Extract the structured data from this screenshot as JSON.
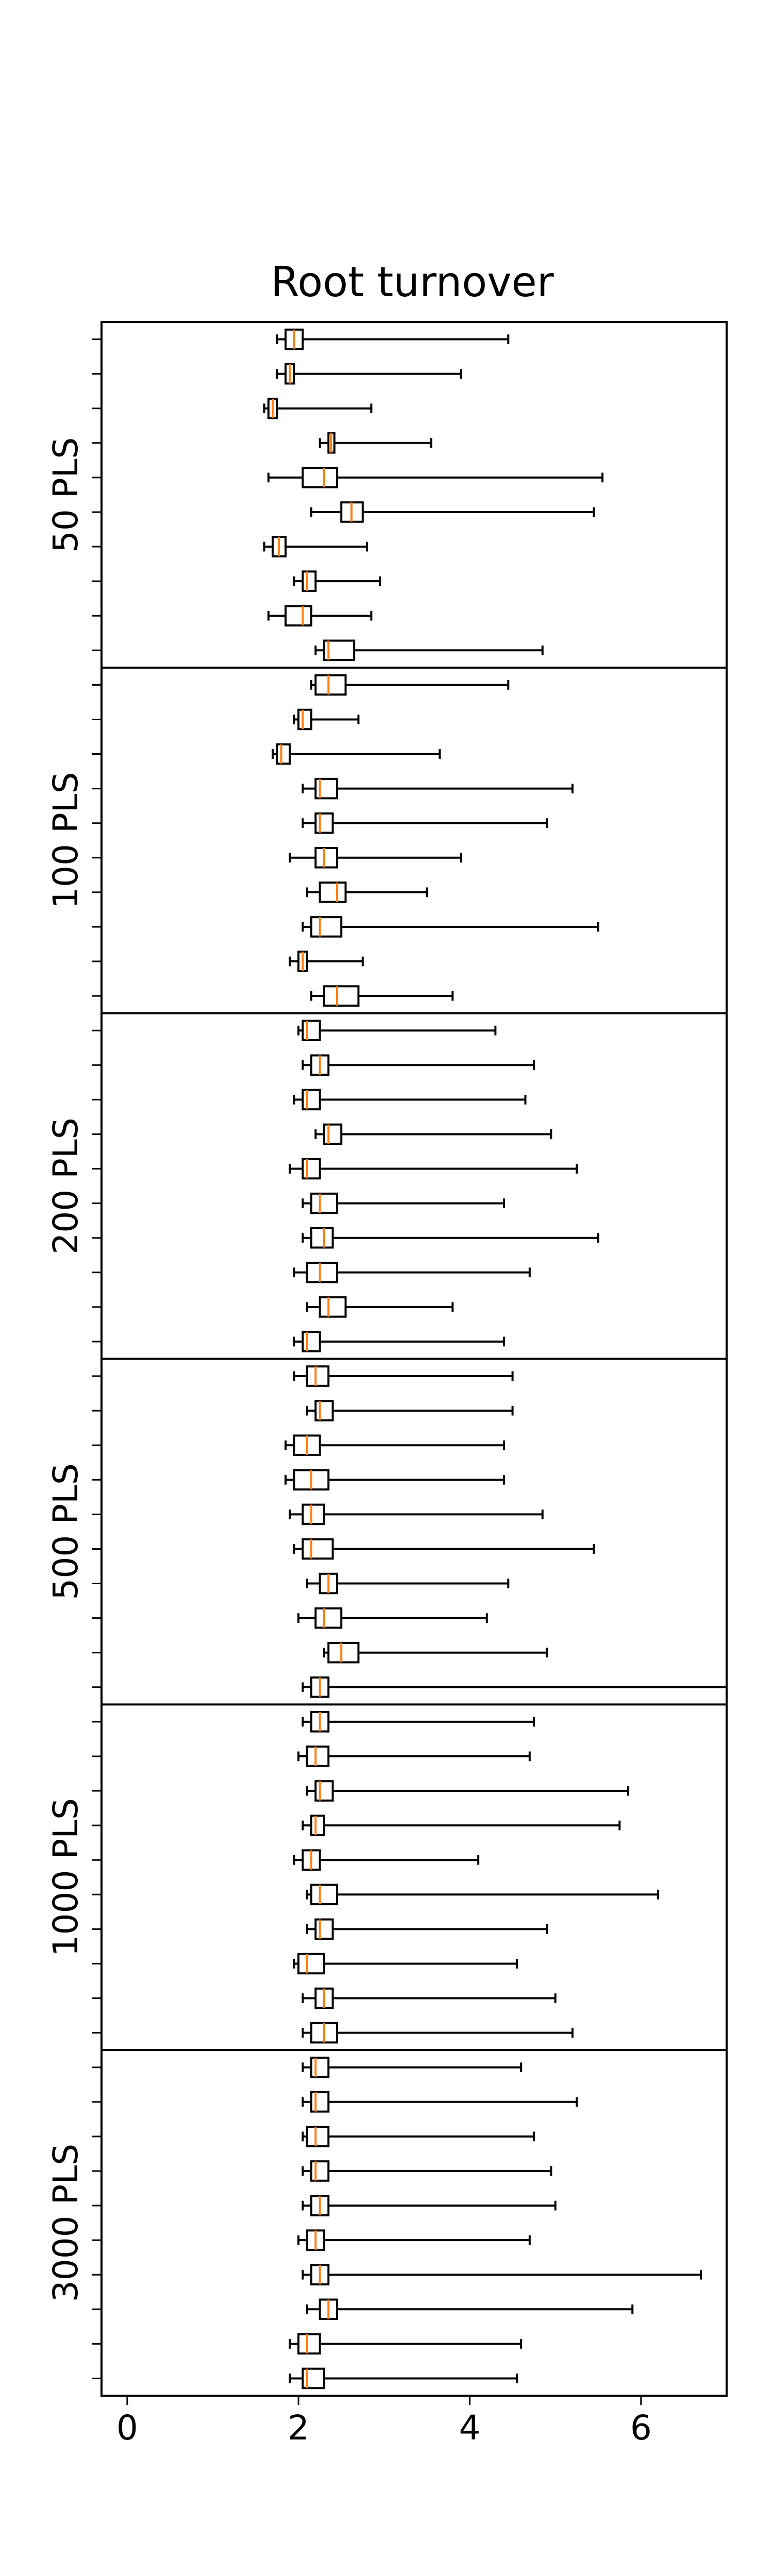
{
  "chart_data": {
    "type": "boxplot",
    "orientation": "horizontal",
    "title": "Root turnover",
    "xlabel": "",
    "ylabel": "",
    "xlim": [
      -0.3,
      7.0
    ],
    "xticks": [
      0,
      2,
      4,
      6
    ],
    "grid": false,
    "colors": {
      "box": "#000000",
      "median": "#ff7f0e",
      "separator": "#000000"
    },
    "groups": [
      {
        "label": "50 PLS",
        "boxes": [
          {
            "wlo": 1.75,
            "q1": 1.85,
            "med": 1.95,
            "q3": 2.05,
            "whi": 4.45
          },
          {
            "wlo": 1.75,
            "q1": 1.85,
            "med": 1.9,
            "q3": 1.95,
            "whi": 3.9
          },
          {
            "wlo": 1.6,
            "q1": 1.65,
            "med": 1.7,
            "q3": 1.75,
            "whi": 2.85
          },
          {
            "wlo": 2.25,
            "q1": 2.35,
            "med": 2.38,
            "q3": 2.42,
            "whi": 3.55
          },
          {
            "wlo": 1.65,
            "q1": 2.05,
            "med": 2.3,
            "q3": 2.45,
            "whi": 5.55
          },
          {
            "wlo": 2.15,
            "q1": 2.5,
            "med": 2.62,
            "q3": 2.75,
            "whi": 5.45
          },
          {
            "wlo": 1.6,
            "q1": 1.7,
            "med": 1.77,
            "q3": 1.85,
            "whi": 2.8
          },
          {
            "wlo": 1.95,
            "q1": 2.05,
            "med": 2.1,
            "q3": 2.2,
            "whi": 2.95
          },
          {
            "wlo": 1.65,
            "q1": 1.85,
            "med": 2.05,
            "q3": 2.15,
            "whi": 2.85
          },
          {
            "wlo": 2.2,
            "q1": 2.3,
            "med": 2.35,
            "q3": 2.65,
            "whi": 4.85
          }
        ]
      },
      {
        "label": "100 PLS",
        "boxes": [
          {
            "wlo": 2.15,
            "q1": 2.2,
            "med": 2.35,
            "q3": 2.55,
            "whi": 4.45
          },
          {
            "wlo": 1.95,
            "q1": 2.0,
            "med": 2.05,
            "q3": 2.15,
            "whi": 2.7
          },
          {
            "wlo": 1.7,
            "q1": 1.75,
            "med": 1.8,
            "q3": 1.9,
            "whi": 3.65
          },
          {
            "wlo": 2.05,
            "q1": 2.2,
            "med": 2.25,
            "q3": 2.45,
            "whi": 5.2
          },
          {
            "wlo": 2.05,
            "q1": 2.2,
            "med": 2.25,
            "q3": 2.4,
            "whi": 4.9
          },
          {
            "wlo": 1.9,
            "q1": 2.2,
            "med": 2.3,
            "q3": 2.45,
            "whi": 3.9
          },
          {
            "wlo": 2.1,
            "q1": 2.25,
            "med": 2.45,
            "q3": 2.55,
            "whi": 3.5
          },
          {
            "wlo": 2.05,
            "q1": 2.15,
            "med": 2.25,
            "q3": 2.5,
            "whi": 5.5
          },
          {
            "wlo": 1.9,
            "q1": 2.0,
            "med": 2.05,
            "q3": 2.1,
            "whi": 2.75
          },
          {
            "wlo": 2.15,
            "q1": 2.3,
            "med": 2.45,
            "q3": 2.7,
            "whi": 3.8
          }
        ]
      },
      {
        "label": "200 PLS",
        "boxes": [
          {
            "wlo": 2.0,
            "q1": 2.05,
            "med": 2.1,
            "q3": 2.25,
            "whi": 4.3
          },
          {
            "wlo": 2.05,
            "q1": 2.15,
            "med": 2.25,
            "q3": 2.35,
            "whi": 4.75
          },
          {
            "wlo": 1.95,
            "q1": 2.05,
            "med": 2.1,
            "q3": 2.25,
            "whi": 4.65
          },
          {
            "wlo": 2.2,
            "q1": 2.3,
            "med": 2.35,
            "q3": 2.5,
            "whi": 4.95
          },
          {
            "wlo": 1.9,
            "q1": 2.05,
            "med": 2.1,
            "q3": 2.25,
            "whi": 5.25
          },
          {
            "wlo": 2.05,
            "q1": 2.15,
            "med": 2.25,
            "q3": 2.45,
            "whi": 4.4
          },
          {
            "wlo": 2.05,
            "q1": 2.15,
            "med": 2.3,
            "q3": 2.4,
            "whi": 5.5
          },
          {
            "wlo": 1.95,
            "q1": 2.1,
            "med": 2.25,
            "q3": 2.45,
            "whi": 4.7
          },
          {
            "wlo": 2.1,
            "q1": 2.25,
            "med": 2.35,
            "q3": 2.55,
            "whi": 3.8
          },
          {
            "wlo": 1.95,
            "q1": 2.05,
            "med": 2.1,
            "q3": 2.25,
            "whi": 4.4
          }
        ]
      },
      {
        "label": "500 PLS",
        "boxes": [
          {
            "wlo": 1.95,
            "q1": 2.1,
            "med": 2.2,
            "q3": 2.35,
            "whi": 4.5
          },
          {
            "wlo": 2.1,
            "q1": 2.2,
            "med": 2.25,
            "q3": 2.4,
            "whi": 4.5
          },
          {
            "wlo": 1.85,
            "q1": 1.95,
            "med": 2.1,
            "q3": 2.25,
            "whi": 4.4
          },
          {
            "wlo": 1.85,
            "q1": 1.95,
            "med": 2.15,
            "q3": 2.35,
            "whi": 4.4
          },
          {
            "wlo": 1.9,
            "q1": 2.05,
            "med": 2.15,
            "q3": 2.3,
            "whi": 4.85
          },
          {
            "wlo": 1.95,
            "q1": 2.05,
            "med": 2.15,
            "q3": 2.4,
            "whi": 5.45
          },
          {
            "wlo": 2.1,
            "q1": 2.25,
            "med": 2.35,
            "q3": 2.45,
            "whi": 4.45
          },
          {
            "wlo": 2.0,
            "q1": 2.2,
            "med": 2.3,
            "q3": 2.5,
            "whi": 4.2
          },
          {
            "wlo": 2.3,
            "q1": 2.35,
            "med": 2.5,
            "q3": 2.7,
            "whi": 4.9
          },
          {
            "wlo": 2.05,
            "q1": 2.15,
            "med": 2.25,
            "q3": 2.35,
            "whi": 7.0
          }
        ]
      },
      {
        "label": "1000 PLS",
        "boxes": [
          {
            "wlo": 2.05,
            "q1": 2.15,
            "med": 2.25,
            "q3": 2.35,
            "whi": 4.75
          },
          {
            "wlo": 2.0,
            "q1": 2.1,
            "med": 2.2,
            "q3": 2.35,
            "whi": 4.7
          },
          {
            "wlo": 2.1,
            "q1": 2.2,
            "med": 2.25,
            "q3": 2.4,
            "whi": 5.85
          },
          {
            "wlo": 2.05,
            "q1": 2.15,
            "med": 2.2,
            "q3": 2.3,
            "whi": 5.75
          },
          {
            "wlo": 1.95,
            "q1": 2.05,
            "med": 2.15,
            "q3": 2.25,
            "whi": 4.1
          },
          {
            "wlo": 2.1,
            "q1": 2.15,
            "med": 2.25,
            "q3": 2.45,
            "whi": 6.2
          },
          {
            "wlo": 2.1,
            "q1": 2.2,
            "med": 2.25,
            "q3": 2.4,
            "whi": 4.9
          },
          {
            "wlo": 1.95,
            "q1": 2.0,
            "med": 2.1,
            "q3": 2.3,
            "whi": 4.55
          },
          {
            "wlo": 2.05,
            "q1": 2.2,
            "med": 2.3,
            "q3": 2.4,
            "whi": 5.0
          },
          {
            "wlo": 2.05,
            "q1": 2.15,
            "med": 2.3,
            "q3": 2.45,
            "whi": 5.2
          }
        ]
      },
      {
        "label": "3000 PLS",
        "boxes": [
          {
            "wlo": 2.05,
            "q1": 2.15,
            "med": 2.2,
            "q3": 2.35,
            "whi": 4.6
          },
          {
            "wlo": 2.05,
            "q1": 2.15,
            "med": 2.2,
            "q3": 2.35,
            "whi": 5.25
          },
          {
            "wlo": 2.05,
            "q1": 2.1,
            "med": 2.2,
            "q3": 2.35,
            "whi": 4.75
          },
          {
            "wlo": 2.05,
            "q1": 2.15,
            "med": 2.2,
            "q3": 2.35,
            "whi": 4.95
          },
          {
            "wlo": 2.05,
            "q1": 2.15,
            "med": 2.25,
            "q3": 2.35,
            "whi": 5.0
          },
          {
            "wlo": 2.0,
            "q1": 2.1,
            "med": 2.2,
            "q3": 2.3,
            "whi": 4.7
          },
          {
            "wlo": 2.05,
            "q1": 2.15,
            "med": 2.25,
            "q3": 2.35,
            "whi": 6.7
          },
          {
            "wlo": 2.1,
            "q1": 2.25,
            "med": 2.35,
            "q3": 2.45,
            "whi": 5.9
          },
          {
            "wlo": 1.9,
            "q1": 2.0,
            "med": 2.1,
            "q3": 2.25,
            "whi": 4.6
          },
          {
            "wlo": 1.9,
            "q1": 2.05,
            "med": 2.1,
            "q3": 2.3,
            "whi": 4.55
          }
        ]
      }
    ]
  }
}
